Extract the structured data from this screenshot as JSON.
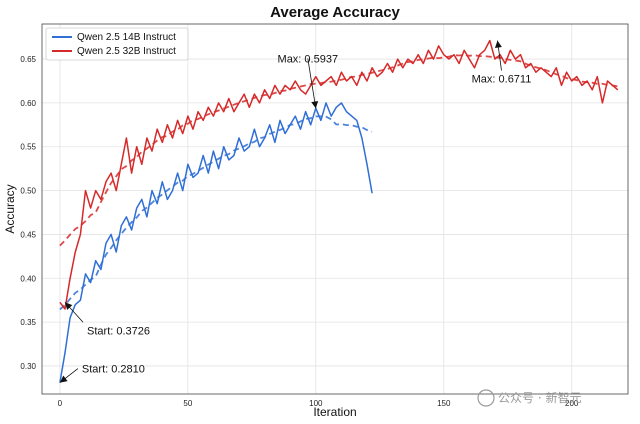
{
  "chart_data": {
    "type": "line",
    "title": "Average Accuracy",
    "xlabel": "Iteration",
    "ylabel": "Accuracy",
    "xlim": [
      -7,
      222
    ],
    "ylim": [
      0.268,
      0.69
    ],
    "x_ticks": [
      0,
      50,
      100,
      150,
      200
    ],
    "y_ticks": [
      0.3,
      0.35,
      0.4,
      0.45,
      0.5,
      0.55,
      0.6,
      0.65
    ],
    "grid": true,
    "legend_position": "top-left",
    "series": [
      {
        "name": "Qwen 2.5 14B Instruct",
        "color": "#2f6fd6",
        "x": [
          0,
          2,
          4,
          6,
          8,
          10,
          12,
          14,
          16,
          18,
          20,
          22,
          24,
          26,
          28,
          30,
          32,
          34,
          36,
          38,
          40,
          42,
          44,
          46,
          48,
          50,
          52,
          54,
          56,
          58,
          60,
          62,
          64,
          66,
          68,
          70,
          72,
          74,
          76,
          78,
          80,
          82,
          84,
          86,
          88,
          90,
          92,
          94,
          96,
          98,
          100,
          102,
          104,
          106,
          108,
          110,
          112,
          114,
          116,
          118,
          120,
          122
        ],
        "values": [
          0.281,
          0.315,
          0.355,
          0.37,
          0.375,
          0.405,
          0.395,
          0.42,
          0.41,
          0.44,
          0.45,
          0.43,
          0.46,
          0.47,
          0.455,
          0.48,
          0.49,
          0.47,
          0.5,
          0.485,
          0.51,
          0.49,
          0.5,
          0.52,
          0.5,
          0.53,
          0.515,
          0.52,
          0.54,
          0.52,
          0.545,
          0.525,
          0.55,
          0.535,
          0.54,
          0.56,
          0.545,
          0.55,
          0.57,
          0.55,
          0.56,
          0.575,
          0.555,
          0.58,
          0.565,
          0.575,
          0.585,
          0.57,
          0.59,
          0.575,
          0.594,
          0.58,
          0.6,
          0.585,
          0.595,
          0.6,
          0.59,
          0.585,
          0.58,
          0.56,
          0.53,
          0.497
        ]
      },
      {
        "name": "Qwen 2.5 32B Instruct",
        "color": "#d62a2a",
        "x": [
          0,
          2,
          4,
          6,
          8,
          10,
          12,
          14,
          16,
          18,
          20,
          22,
          24,
          26,
          28,
          30,
          32,
          34,
          36,
          38,
          40,
          42,
          44,
          46,
          48,
          50,
          52,
          54,
          56,
          58,
          60,
          62,
          64,
          66,
          68,
          70,
          72,
          74,
          76,
          78,
          80,
          82,
          84,
          86,
          88,
          90,
          92,
          94,
          96,
          98,
          100,
          102,
          104,
          106,
          108,
          110,
          112,
          114,
          116,
          118,
          120,
          122,
          124,
          126,
          128,
          130,
          132,
          134,
          136,
          138,
          140,
          142,
          144,
          146,
          148,
          150,
          152,
          154,
          156,
          158,
          160,
          162,
          164,
          166,
          168,
          170,
          172,
          174,
          176,
          178,
          180,
          182,
          184,
          186,
          188,
          190,
          192,
          194,
          196,
          198,
          200,
          202,
          204,
          206,
          208,
          210,
          212,
          214,
          216,
          218
        ],
        "values": [
          0.3726,
          0.365,
          0.4,
          0.43,
          0.45,
          0.5,
          0.48,
          0.5,
          0.49,
          0.51,
          0.52,
          0.5,
          0.53,
          0.56,
          0.52,
          0.55,
          0.53,
          0.56,
          0.545,
          0.57,
          0.555,
          0.575,
          0.56,
          0.58,
          0.565,
          0.585,
          0.57,
          0.59,
          0.58,
          0.595,
          0.585,
          0.6,
          0.59,
          0.605,
          0.59,
          0.6,
          0.61,
          0.595,
          0.61,
          0.6,
          0.615,
          0.605,
          0.62,
          0.61,
          0.62,
          0.615,
          0.625,
          0.615,
          0.61,
          0.62,
          0.63,
          0.62,
          0.625,
          0.63,
          0.62,
          0.635,
          0.625,
          0.63,
          0.62,
          0.635,
          0.625,
          0.64,
          0.63,
          0.635,
          0.645,
          0.635,
          0.65,
          0.64,
          0.65,
          0.645,
          0.655,
          0.645,
          0.66,
          0.65,
          0.665,
          0.655,
          0.65,
          0.655,
          0.645,
          0.66,
          0.65,
          0.64,
          0.655,
          0.66,
          0.6711,
          0.65,
          0.655,
          0.645,
          0.66,
          0.65,
          0.655,
          0.64,
          0.645,
          0.635,
          0.64,
          0.635,
          0.63,
          0.64,
          0.62,
          0.635,
          0.625,
          0.63,
          0.62,
          0.625,
          0.615,
          0.63,
          0.6,
          0.625,
          0.62,
          0.615
        ]
      }
    ],
    "annotations": [
      {
        "text": "Start: 0.3726",
        "x": 2,
        "y": 0.3726,
        "label_position": "lower-right"
      },
      {
        "text": "Start: 0.2810",
        "x": 0,
        "y": 0.281,
        "label_position": "upper-right"
      },
      {
        "text": "Max: 0.5937",
        "x": 100,
        "y": 0.5937,
        "label_position": "above-left"
      },
      {
        "text": "Max: 0.6711",
        "x": 171,
        "y": 0.6711,
        "label_position": "below-left"
      }
    ]
  },
  "watermark": "公众号 · 新智元"
}
